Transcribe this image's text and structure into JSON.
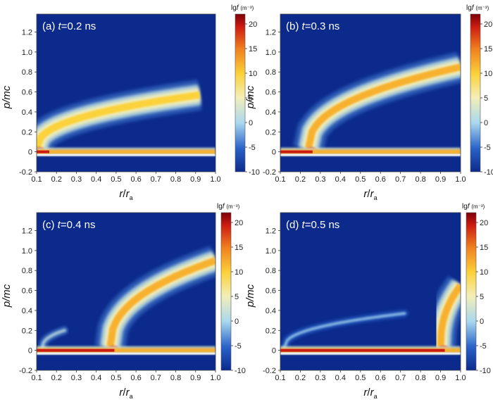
{
  "chart_data": [
    {
      "type": "heatmap",
      "label": "(a)",
      "time_var": "t",
      "time_value": "=0.2 ns",
      "xlabel_main": "r",
      "xlabel_sep": "/",
      "xlabel_sym": "r",
      "xlabel_sub": "a",
      "ylabel": "p/mc",
      "xlim": [
        0.1,
        1.0
      ],
      "ylim": [
        -0.2,
        1.38
      ],
      "xticks": [
        "0.1",
        "0.2",
        "0.3",
        "0.4",
        "0.5",
        "0.6",
        "0.7",
        "0.8",
        "0.9",
        "1.0"
      ],
      "yticks": [
        "-0.2",
        "0",
        "0.2",
        "0.4",
        "0.6",
        "0.8",
        "1.0",
        "1.2"
      ],
      "colorbar": {
        "label_main": "lg",
        "label_var": "f",
        "label_unit": "(m⁻³)",
        "range": [
          -10,
          22
        ],
        "ticks": [
          "20",
          "15",
          "10",
          "5",
          "0",
          "-5",
          "-10"
        ]
      },
      "features": {
        "beam": {
          "x_start": 0.1,
          "x_end": 1.0,
          "y": 0.0,
          "core_value": 20
        },
        "arm": {
          "x_start": 0.1,
          "x_end": 0.92,
          "y_base": 0.03,
          "y_top": 0.57,
          "value": 10
        }
      }
    },
    {
      "type": "heatmap",
      "label": "(b)",
      "time_var": "t",
      "time_value": "=0.3 ns",
      "xlabel_main": "r",
      "xlabel_sep": "/",
      "xlabel_sym": "r",
      "xlabel_sub": "a",
      "ylabel": "p/mc",
      "xlim": [
        0.1,
        1.0
      ],
      "ylim": [
        -0.2,
        1.38
      ],
      "xticks": [
        "0.1",
        "0.2",
        "0.3",
        "0.4",
        "0.5",
        "0.6",
        "0.7",
        "0.8",
        "0.9",
        "1.0"
      ],
      "yticks": [
        "-0.2",
        "0",
        "0.2",
        "0.4",
        "0.6",
        "0.8",
        "1.0",
        "1.2"
      ],
      "colorbar": {
        "label_main": "lg",
        "label_var": "f",
        "label_unit": "(m⁻³)",
        "range": [
          -10,
          22
        ],
        "ticks": [
          "20",
          "15",
          "10",
          "5",
          "0",
          "-5",
          "-10"
        ]
      },
      "features": {
        "beam": {
          "x_start": 0.1,
          "x_end": 1.0,
          "y": 0.0,
          "core_value": 20
        },
        "arm": {
          "x_start": 0.24,
          "x_end": 1.0,
          "y_base": 0.03,
          "y_top": 0.85,
          "value": 12
        }
      }
    },
    {
      "type": "heatmap",
      "label": "(c)",
      "time_var": "t",
      "time_value": "=0.4 ns",
      "xlabel_main": "r",
      "xlabel_sep": "/",
      "xlabel_sym": "r",
      "xlabel_sub": "a",
      "ylabel": "p/mc",
      "xlim": [
        0.1,
        1.0
      ],
      "ylim": [
        -0.2,
        1.38
      ],
      "xticks": [
        "0.1",
        "0.2",
        "0.3",
        "0.4",
        "0.5",
        "0.6",
        "0.7",
        "0.8",
        "0.9",
        "1.0"
      ],
      "yticks": [
        "-0.2",
        "0",
        "0.2",
        "0.4",
        "0.6",
        "0.8",
        "1.0",
        "1.2"
      ],
      "colorbar": {
        "label_main": "lg",
        "label_var": "f",
        "label_unit": "(m⁻³)",
        "range": [
          -10,
          22
        ],
        "ticks": [
          "20",
          "15",
          "10",
          "5",
          "0",
          "-5",
          "-10"
        ]
      },
      "features": {
        "beam": {
          "x_start": 0.1,
          "x_end": 1.0,
          "y": 0.0,
          "core_value": 20
        },
        "arm": {
          "x_start": 0.47,
          "x_end": 1.0,
          "y_base": 0.03,
          "y_top": 0.9,
          "value": 12
        },
        "secondary": {
          "x_start": 0.13,
          "x_end": 0.24,
          "y_base": 0.03,
          "y_top": 0.2,
          "value": 0
        }
      }
    },
    {
      "type": "heatmap",
      "label": "(d)",
      "time_var": "t",
      "time_value": "=0.5 ns",
      "xlabel_main": "r",
      "xlabel_sep": "/",
      "xlabel_sym": "r",
      "xlabel_sub": "a",
      "ylabel": "p/mc",
      "xlim": [
        0.1,
        1.0
      ],
      "ylim": [
        -0.2,
        1.38
      ],
      "xticks": [
        "0.1",
        "0.2",
        "0.3",
        "0.4",
        "0.5",
        "0.6",
        "0.7",
        "0.8",
        "0.9",
        "1.0"
      ],
      "yticks": [
        "-0.2",
        "0",
        "0.2",
        "0.4",
        "0.6",
        "0.8",
        "1.0",
        "1.2"
      ],
      "colorbar": {
        "label_main": "lg",
        "label_var": "f",
        "label_unit": "(m⁻³)",
        "range": [
          -10,
          22
        ],
        "ticks": [
          "20",
          "15",
          "10",
          "5",
          "0",
          "-5",
          "-10"
        ]
      },
      "features": {
        "beam": {
          "x_start": 0.1,
          "x_end": 1.0,
          "y": 0.0,
          "core_value": 20
        },
        "arm": {
          "x_start": 0.9,
          "x_end": 1.0,
          "y_base": 0.03,
          "y_top": 0.65,
          "value": 12
        },
        "secondary": {
          "x_start": 0.12,
          "x_end": 0.72,
          "y_base": 0.03,
          "y_top": 0.37,
          "value": -2
        }
      }
    }
  ]
}
